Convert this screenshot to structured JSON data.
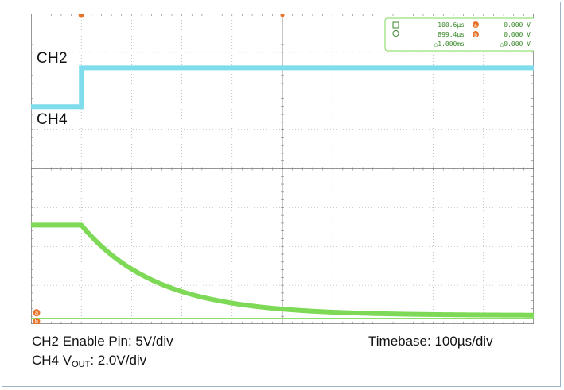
{
  "labels": {
    "ch2": "CH2",
    "ch4": "CH4"
  },
  "captions": {
    "enable": "CH2 Enable Pin: 5V/div",
    "vout_prefix": "CH4 V",
    "vout_sub": "OUT",
    "vout_suffix": ": 2.0V/div",
    "timebase": "Timebase: 100µs/div"
  },
  "cursor_readout": {
    "row1": {
      "time": "−100.6µs",
      "volt": "0.000 V",
      "marker": "a"
    },
    "row2": {
      "time": "899.4µs",
      "volt": "0.000 V",
      "marker": "b"
    },
    "row3": {
      "time": "△1.000ms",
      "volt": "△0.000 V"
    }
  },
  "colors": {
    "ch2": "#7fdcec",
    "ch4": "#7ed957",
    "grid": "#999999",
    "marker": "#e8742c",
    "readout_border": "#7ed957",
    "readout_text": "#3a8a2a"
  },
  "chart_data": {
    "type": "line",
    "title": "",
    "xlabel": "",
    "ylabel": "",
    "x_unit": "µs",
    "xlim": [
      -100,
      900
    ],
    "x_divisions": 10,
    "y_divisions": 8,
    "trigger_time_us": 0,
    "series": [
      {
        "name": "CH2",
        "color": "#7fdcec",
        "units": "V",
        "volts_per_div": 5,
        "ground_level_div": 5.6,
        "t": [
          -100,
          -1,
          0,
          900
        ],
        "v": [
          0,
          0,
          5,
          5
        ]
      },
      {
        "name": "CH4",
        "color": "#7ed957",
        "units": "V",
        "volts_per_div": 2,
        "ground_level_div": 0.15,
        "initial_v": 4.8,
        "final_v": 0.15,
        "tau_us": 150,
        "t": [
          -100,
          0,
          50,
          100,
          150,
          200,
          300,
          400,
          500,
          600,
          700,
          800,
          900
        ],
        "v": [
          4.8,
          4.8,
          3.48,
          2.55,
          1.86,
          1.36,
          0.75,
          0.44,
          0.28,
          0.2,
          0.17,
          0.16,
          0.15
        ]
      }
    ]
  }
}
